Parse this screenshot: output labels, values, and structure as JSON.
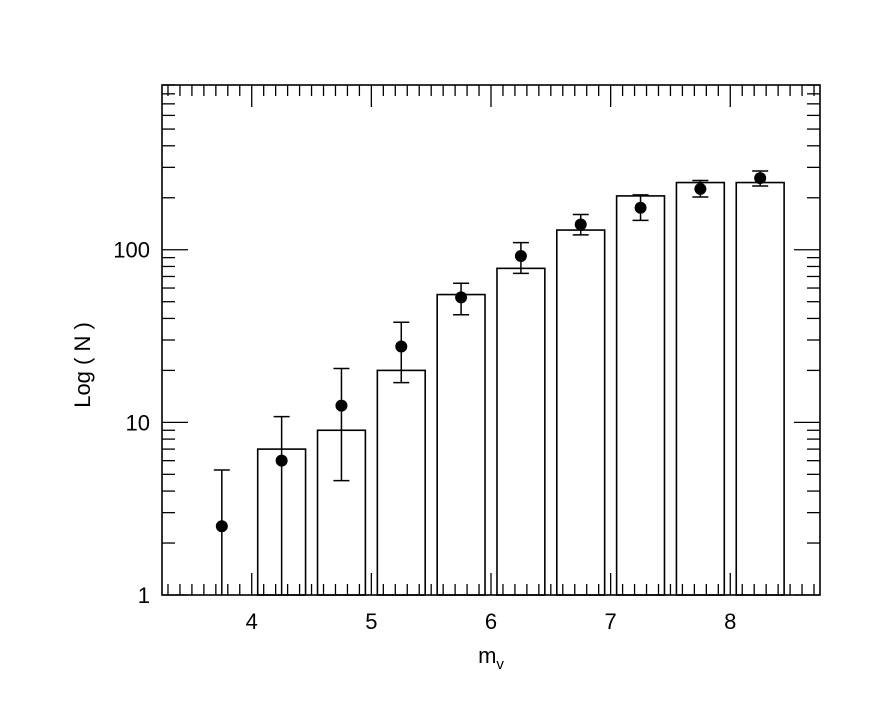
{
  "chart_data": {
    "type": "bar",
    "xlabel": "m",
    "xlabel_subscript": "v",
    "ylabel": "Log ( N )",
    "yscale": "log",
    "xlim": [
      3.25,
      8.75
    ],
    "ylim": [
      1,
      900
    ],
    "x_ticks": [
      4,
      5,
      6,
      7,
      8
    ],
    "x_tick_labels": [
      "4",
      "5",
      "6",
      "7",
      "8"
    ],
    "y_ticks": [
      1,
      10,
      100
    ],
    "y_tick_labels": [
      "1",
      "10",
      "100"
    ],
    "bars": {
      "x": [
        4.25,
        4.75,
        5.25,
        5.75,
        6.25,
        6.75,
        7.25,
        7.75,
        8.25
      ],
      "width": 0.4,
      "values": [
        7,
        9,
        20,
        55,
        78,
        130,
        205,
        245,
        245
      ]
    },
    "points": {
      "x": [
        3.75,
        4.25,
        4.75,
        5.25,
        5.75,
        6.25,
        6.75,
        7.25,
        7.75,
        8.25
      ],
      "y": [
        2.5,
        6,
        12.5,
        27.5,
        53,
        92,
        140,
        175,
        225,
        260
      ],
      "err_low": [
        1,
        1,
        4.6,
        17,
        42,
        73,
        122,
        148,
        202,
        234
      ],
      "err_high": [
        5.3,
        10.8,
        20.5,
        38,
        64,
        110,
        160,
        208,
        252,
        286
      ]
    },
    "grid": false,
    "legend": "none"
  }
}
